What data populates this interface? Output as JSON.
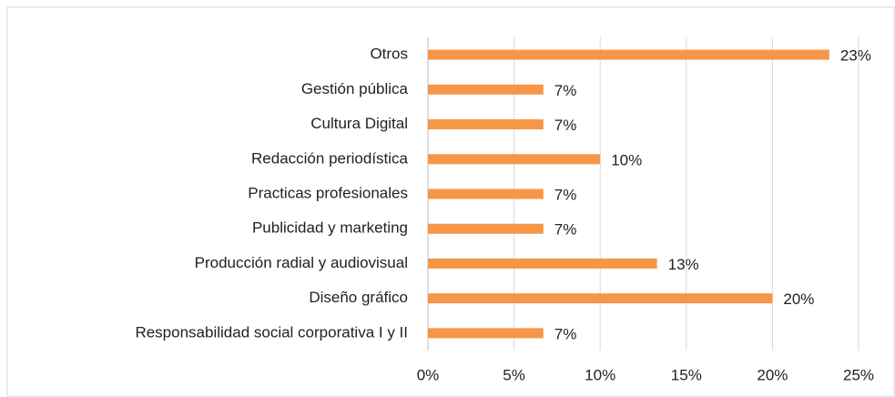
{
  "chart_data": {
    "type": "barh",
    "categories": [
      "Otros",
      "Gestión pública",
      "Cultura Digital",
      "Redacción periodística",
      "Practicas profesionales",
      "Publicidad y marketing",
      "Producción radial y audiovisual",
      "Diseño gráfico",
      "Responsabilidad social corporativa I y II"
    ],
    "values": [
      23.3,
      6.7,
      6.7,
      10,
      6.7,
      6.7,
      13.3,
      20,
      6.7
    ],
    "value_labels": [
      "23%",
      "7%",
      "7%",
      "10%",
      "7%",
      "7%",
      "13%",
      "20%",
      "7%"
    ],
    "color": "#f79646",
    "xlim": [
      0,
      25
    ],
    "xticks": [
      {
        "value": 0,
        "label": "0%"
      },
      {
        "value": 5,
        "label": "5%"
      },
      {
        "value": 10,
        "label": "10%"
      },
      {
        "value": 15,
        "label": "15%"
      },
      {
        "value": 20,
        "label": "20%"
      },
      {
        "value": 25,
        "label": "25%"
      }
    ],
    "grid": true
  }
}
